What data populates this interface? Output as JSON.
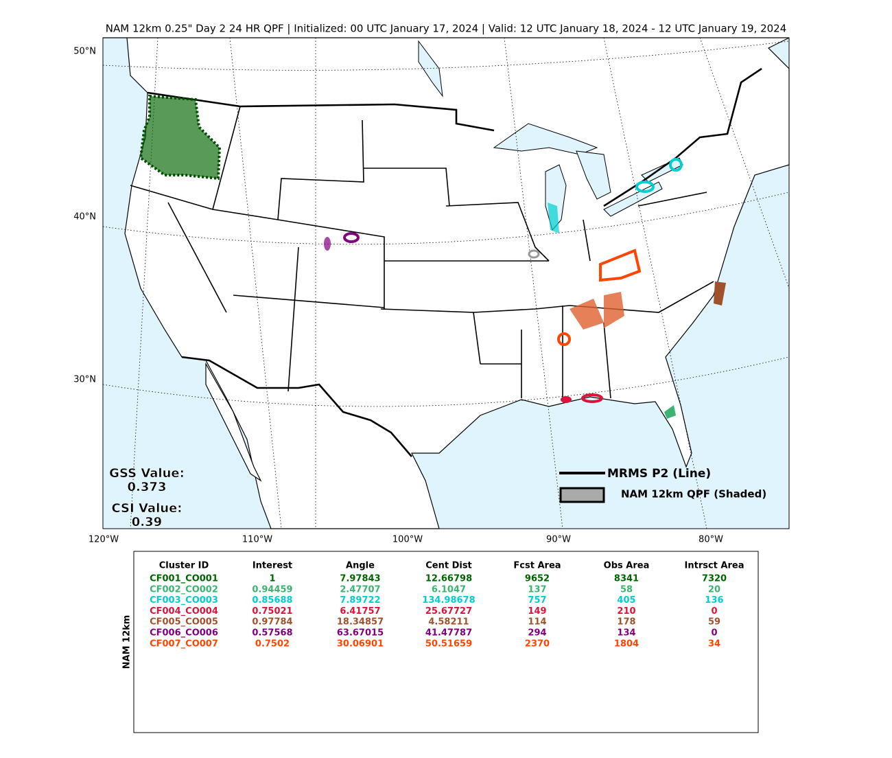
{
  "title": "NAM 12km 0.25\" Day 2 24 HR QPF | Initialized: 00 UTC January 17, 2024 | Valid: 12 UTC January 18, 2024 - 12 UTC January 19, 2024",
  "map": {
    "lat_labels": [
      "50°N",
      "40°N",
      "30°N"
    ],
    "lon_labels": [
      "120°W",
      "110°W",
      "100°W",
      "90°W",
      "80°W"
    ],
    "gss_label": "GSS Value:",
    "gss_value": 0.373,
    "csi_label": "CSI Value:",
    "csi_value": 0.39,
    "legend": {
      "line": "MRMS P2 (Line)",
      "shaded": "NAM 12km QPF (Shaded)"
    }
  },
  "table": {
    "side_label": "NAM 12km",
    "columns": [
      "Cluster ID",
      "Interest",
      "Angle",
      "Cent Dist",
      "Fcst Area",
      "Obs Area",
      "Intrsct Area"
    ],
    "rows": [
      {
        "color": "#006400",
        "cells": [
          "CF001_CO001",
          1,
          7.97843,
          12.66798,
          9652,
          8341,
          7320
        ]
      },
      {
        "color": "#3cb371",
        "cells": [
          "CF002_CO002",
          0.94459,
          2.47707,
          6.1047,
          137,
          58,
          20
        ]
      },
      {
        "color": "#00ced1",
        "cells": [
          "CF003_CO003",
          0.85688,
          7.89722,
          134.98678,
          757,
          405,
          136
        ]
      },
      {
        "color": "#dc143c",
        "cells": [
          "CF004_CO004",
          0.75021,
          6.41757,
          25.67727,
          149,
          210,
          0
        ]
      },
      {
        "color": "#a0522d",
        "cells": [
          "CF005_CO005",
          0.97784,
          18.34857,
          4.58211,
          114,
          178,
          59
        ]
      },
      {
        "color": "#800080",
        "cells": [
          "CF006_CO006",
          0.57568,
          63.67015,
          41.47787,
          294,
          134,
          0
        ]
      },
      {
        "color": "#ff4500",
        "cells": [
          "CF007_CO007",
          0.7502,
          30.06901,
          50.51659,
          2370,
          1804,
          34
        ]
      }
    ]
  }
}
